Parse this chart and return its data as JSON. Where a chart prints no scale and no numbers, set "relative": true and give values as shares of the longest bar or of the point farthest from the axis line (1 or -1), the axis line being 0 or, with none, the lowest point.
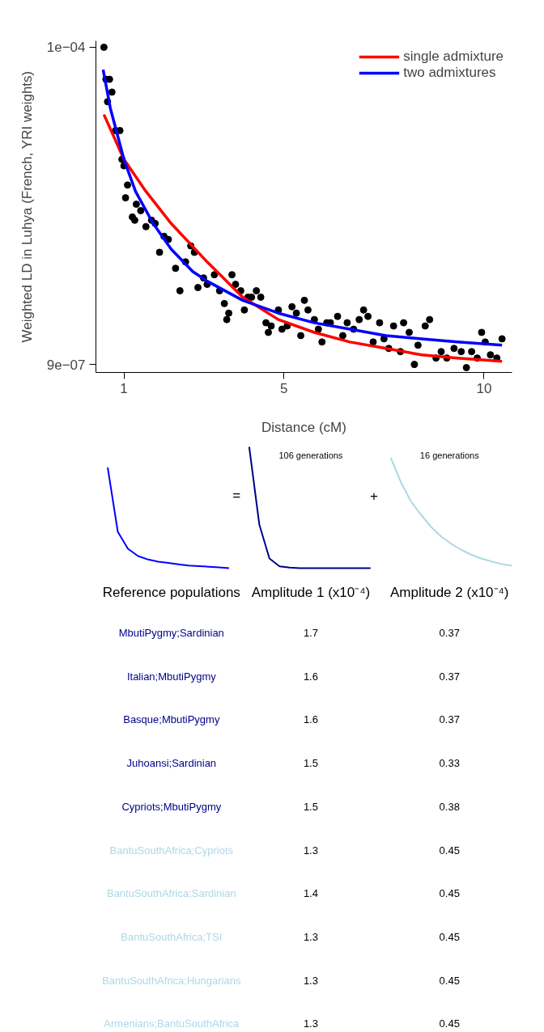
{
  "chart_data": [
    {
      "type": "scatter",
      "xlabel": "Distance (cM)",
      "ylabel": "Weighted LD in Luhya (French, YRI weights)",
      "xlim": [
        0.3,
        10.7
      ],
      "ylim": [
        -1.5e-06,
        0.000102
      ],
      "xticks": [
        1,
        5,
        10
      ],
      "yticks": [
        {
          "value": 9e-07,
          "label": "9e−07"
        },
        {
          "value": 0.0001,
          "label": "1e−04"
        }
      ],
      "legend": "top right",
      "series": [
        {
          "type": "scatter",
          "marker": "circle",
          "color": "#000000",
          "x": [
            0.5,
            0.55,
            0.64,
            0.7,
            0.59,
            0.79,
            0.9,
            0.95,
            1.0,
            1.09,
            1.04,
            1.21,
            1.27,
            1.31,
            1.42,
            1.55,
            1.69,
            1.78,
            1.89,
            2.0,
            2.11,
            2.29,
            2.4,
            2.54,
            2.67,
            2.76,
            2.85,
            2.99,
            3.08,
            3.26,
            3.39,
            3.51,
            3.57,
            3.62,
            3.7,
            3.79,
            3.92,
            4.01,
            4.1,
            4.19,
            4.31,
            4.42,
            4.55,
            4.61,
            4.68,
            4.86,
            4.95,
            5.08,
            5.2,
            5.31,
            5.42,
            5.51,
            5.6,
            5.76,
            5.86,
            5.95,
            6.07,
            6.16,
            6.34,
            6.47,
            6.58,
            6.74,
            6.88,
            6.99,
            7.1,
            7.23,
            7.39,
            7.5,
            7.62,
            7.74,
            7.91,
            7.99,
            8.13,
            8.26,
            8.35,
            8.53,
            8.64,
            8.8,
            8.93,
            9.07,
            9.25,
            9.43,
            9.56,
            9.69,
            9.83,
            9.94,
            10.03,
            10.16,
            10.32,
            10.45
          ],
          "values": [
            0.0001,
            9e-05,
            9e-05,
            8.6e-05,
            8.3e-05,
            7.4e-05,
            7.4e-05,
            6.5e-05,
            6.3e-05,
            5.7e-05,
            5.3e-05,
            4.7e-05,
            4.6e-05,
            5.1e-05,
            4.9e-05,
            4.4e-05,
            4.6e-05,
            4.5e-05,
            3.6e-05,
            4.1e-05,
            4e-05,
            3.1e-05,
            2.4e-05,
            3.3e-05,
            3.8e-05,
            3.6e-05,
            2.5e-05,
            2.8e-05,
            2.6e-05,
            2.9e-05,
            2.4e-05,
            2e-05,
            1.5e-05,
            1.7e-05,
            2.9e-05,
            2.6e-05,
            2.4e-05,
            1.8e-05,
            2.2e-05,
            2.2e-05,
            2.4e-05,
            2.2e-05,
            1.4e-05,
            1.1e-05,
            1.3e-05,
            1.8e-05,
            1.2e-05,
            1.3e-05,
            1.9e-05,
            1.7e-05,
            1e-05,
            2.1e-05,
            1.8e-05,
            1.5e-05,
            1.2e-05,
            8e-06,
            1.4e-05,
            1.4e-05,
            1.6e-05,
            1e-05,
            1.4e-05,
            1.2e-05,
            1.5e-05,
            1.8e-05,
            1.6e-05,
            8e-06,
            1.4e-05,
            9e-06,
            6e-06,
            1.3e-05,
            5e-06,
            1.4e-05,
            1.1e-05,
            1e-06,
            7e-06,
            1.3e-05,
            1.5e-05,
            3e-06,
            5e-06,
            3e-06,
            6e-06,
            5e-06,
            0,
            5e-06,
            3e-06,
            1.1e-05,
            8e-06,
            4e-06,
            3e-06,
            9e-06
          ]
        },
        {
          "type": "line",
          "marker": "none",
          "name": "single admixture",
          "color": "#ff0000",
          "x": [
            0.5,
            1.0,
            1.55,
            2.18,
            3.08,
            3.97,
            4.86,
            5.76,
            6.65,
            7.55,
            8.44,
            9.33,
            10.45
          ],
          "values": [
            7.9e-05,
            6.5e-05,
            5.5e-05,
            4.5e-05,
            3.3e-05,
            2.2e-05,
            1.5e-05,
            1.1e-05,
            8e-06,
            6e-06,
            4e-06,
            3e-06,
            2e-06
          ]
        },
        {
          "type": "line",
          "marker": "none",
          "name": "two admixtures",
          "color": "#0000ff",
          "x": [
            0.48,
            0.66,
            1.0,
            1.29,
            1.73,
            2.18,
            2.72,
            3.08,
            3.97,
            4.86,
            5.76,
            6.65,
            7.55,
            8.44,
            9.33,
            10.45
          ],
          "values": [
            9.3e-05,
            8.1e-05,
            6.5e-05,
            5.5e-05,
            4.5e-05,
            3.7e-05,
            3e-05,
            2.7e-05,
            2.1e-05,
            1.7e-05,
            1.4e-05,
            1.2e-05,
            1e-05,
            9e-06,
            8e-06,
            7e-06
          ]
        }
      ]
    },
    {
      "type": "line",
      "relative": true,
      "annotations": [
        "=",
        "106 generations",
        "+",
        "16 generations"
      ],
      "categories": [
        null,
        null,
        null,
        null,
        null,
        null,
        null,
        null,
        null,
        null,
        null,
        null,
        null,
        null,
        null,
        null,
        null,
        null,
        null,
        null,
        null,
        null,
        null,
        null,
        null,
        null,
        null,
        null,
        null,
        null,
        null,
        null,
        null,
        null,
        null,
        null,
        null,
        null,
        null,
        null,
        null
      ],
      "series": [
        {
          "color": "#0000ff",
          "values": [
            0.83,
            0.3,
            0.16,
            0.1,
            0.071,
            0.054,
            0.043,
            0.032,
            0.022,
            0.017,
            0.012,
            0.006,
            0,
            null,
            null,
            null,
            null,
            null,
            null,
            null,
            null,
            null,
            null,
            null,
            null,
            null,
            null,
            null,
            null,
            null,
            null,
            null,
            null,
            null,
            null,
            null,
            null,
            null,
            null,
            null,
            null
          ]
        },
        {
          "color": "#00008b",
          "values": [
            null,
            null,
            null,
            null,
            null,
            null,
            null,
            null,
            null,
            null,
            null,
            null,
            null,
            null,
            1,
            0.36,
            0.08,
            0.015,
            0.005,
            0,
            0,
            0,
            0,
            0,
            0,
            0,
            0,
            null,
            null,
            null,
            null,
            null,
            null,
            null,
            null,
            null,
            null,
            null,
            null,
            null,
            null
          ]
        },
        {
          "color": "#add8e6",
          "values": [
            null,
            null,
            null,
            null,
            null,
            null,
            null,
            null,
            null,
            null,
            null,
            null,
            null,
            null,
            null,
            null,
            null,
            null,
            null,
            null,
            null,
            null,
            null,
            null,
            null,
            null,
            null,
            null,
            0.91,
            0.71,
            0.55,
            0.44,
            0.34,
            0.26,
            0.2,
            0.15,
            0.11,
            0.078,
            0.055,
            0.034,
            0.02
          ]
        }
      ]
    },
    {
      "type": "other",
      "xlabel": "Reference populations",
      "data_labels": true,
      "categories": [
        "MbutiPygmy;Sardinian",
        "Italian;MbutiPygmy",
        "Basque;MbutiPygmy",
        "Juhoansi;Sardinian",
        "Cypriots;MbutiPygmy",
        "BantuSouthAfrica;Cypriots",
        "BantuSouthAfrica;Sardinian",
        "BantuSouthAfrica;TSI",
        "BantuSouthAfrica;Hungarians",
        "Armenians;BantuSouthAfrica"
      ],
      "colors": [
        "#00008b",
        "#00008b",
        "#00008b",
        "#00008b",
        "#00008b",
        "#add8e6",
        "#add8e6",
        "#add8e6",
        "#add8e6",
        "#add8e6"
      ],
      "series": [
        {
          "name": "Amplitude 1 (x10⁻⁴)",
          "values": [
            1.7,
            1.6,
            1.6,
            1.5,
            1.5,
            1.3,
            1.4,
            1.3,
            1.3,
            1.3
          ]
        },
        {
          "name": "Amplitude 2 (x10⁻⁴)",
          "values": [
            0.37,
            0.37,
            0.37,
            0.33,
            0.38,
            0.45,
            0.45,
            0.45,
            0.45,
            0.45
          ]
        }
      ]
    }
  ]
}
